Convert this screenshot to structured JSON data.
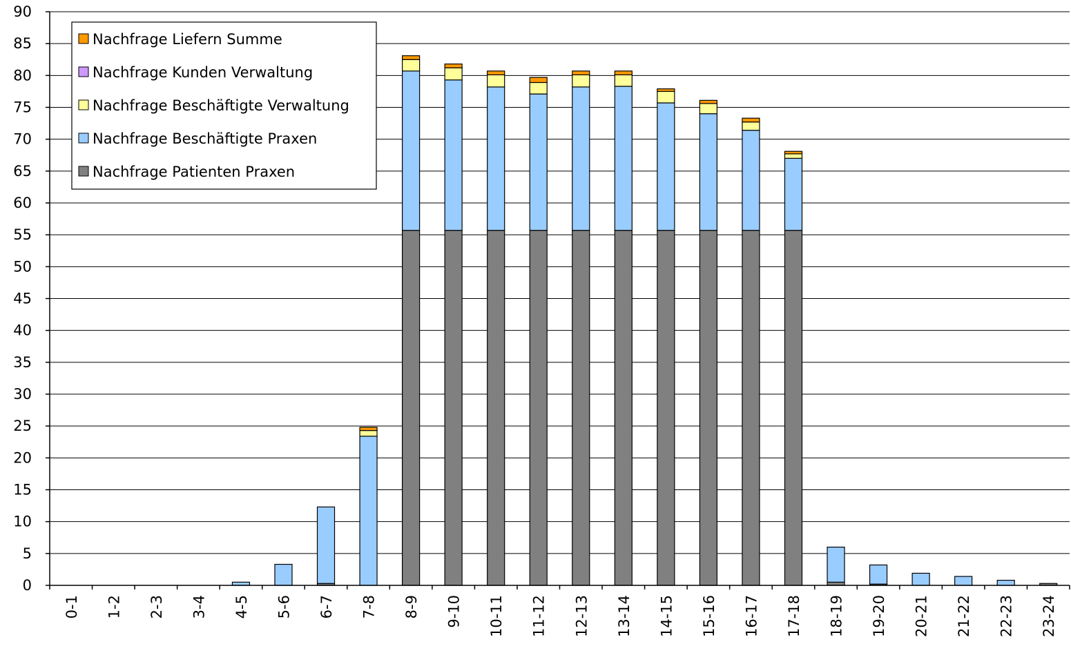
{
  "chart_data": {
    "type": "bar",
    "stacked": true,
    "title": "",
    "xlabel": "",
    "ylabel": "",
    "ylim": [
      0,
      90
    ],
    "y_ticks": [
      0,
      5,
      10,
      15,
      20,
      25,
      30,
      35,
      40,
      45,
      50,
      55,
      60,
      65,
      70,
      75,
      80,
      85,
      90
    ],
    "grid": "horizontal",
    "legend_position": "top-left",
    "categories": [
      "0-1",
      "1-2",
      "2-3",
      "3-4",
      "4-5",
      "5-6",
      "6-7",
      "7-8",
      "8-9",
      "9-10",
      "10-11",
      "11-12",
      "12-13",
      "13-14",
      "14-15",
      "15-16",
      "16-17",
      "17-18",
      "18-19",
      "19-20",
      "20-21",
      "21-22",
      "22-23",
      "23-24"
    ],
    "series": [
      {
        "name": "Nachfrage Patienten Praxen",
        "color": "#808080",
        "values": [
          0,
          0,
          0,
          0,
          0,
          0,
          0.3,
          0,
          55.7,
          55.7,
          55.7,
          55.7,
          55.7,
          55.7,
          55.7,
          55.7,
          55.7,
          55.7,
          0.5,
          0.2,
          0,
          0,
          0,
          0.3
        ]
      },
      {
        "name": "Nachfrage Beschäftigte Praxen",
        "color": "#99ccff",
        "values": [
          0,
          0,
          0,
          0,
          0.5,
          3.3,
          12,
          23.4,
          25,
          23.6,
          22.5,
          21.4,
          22.5,
          22.6,
          20,
          18.3,
          15.7,
          11.3,
          5.5,
          3,
          1.9,
          1.4,
          0.8,
          0
        ]
      },
      {
        "name": "Nachfrage Beschäftigte Verwaltung",
        "color": "#ffff99",
        "values": [
          0,
          0,
          0,
          0,
          0,
          0,
          0,
          0.9,
          1.8,
          1.9,
          1.9,
          1.8,
          1.9,
          1.8,
          1.8,
          1.6,
          1.3,
          0.7,
          0,
          0,
          0,
          0,
          0,
          0
        ]
      },
      {
        "name": "Nachfrage Kunden Verwaltung",
        "color": "#cc99ff",
        "values": [
          0,
          0,
          0,
          0,
          0,
          0,
          0,
          0,
          0,
          0,
          0,
          0,
          0,
          0,
          0,
          0,
          0,
          0,
          0,
          0,
          0,
          0,
          0,
          0
        ]
      },
      {
        "name": "Nachfrage Liefern Summe",
        "color": "#ff9900",
        "values": [
          0,
          0,
          0,
          0,
          0,
          0,
          0,
          0.5,
          0.6,
          0.6,
          0.6,
          0.8,
          0.6,
          0.6,
          0.4,
          0.5,
          0.6,
          0.4,
          0,
          0,
          0,
          0,
          0,
          0
        ]
      }
    ],
    "legend_order": [
      "Nachfrage Liefern Summe",
      "Nachfrage Kunden Verwaltung",
      "Nachfrage Beschäftigte Verwaltung",
      "Nachfrage Beschäftigte Praxen",
      "Nachfrage Patienten Praxen"
    ]
  }
}
